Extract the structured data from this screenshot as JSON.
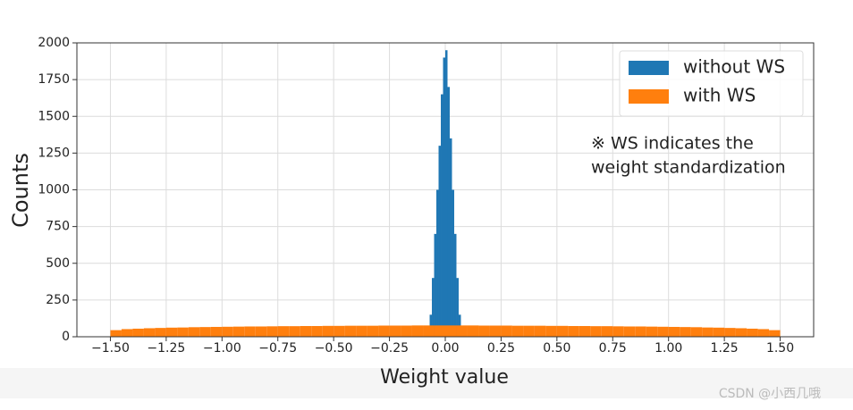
{
  "chart_data": {
    "type": "histogram",
    "xlabel": "Weight value",
    "ylabel": "Counts",
    "annotation": [
      "※ WS indicates the",
      "weight standardization"
    ],
    "watermark": "CSDN @小西几哦",
    "xlim": [
      -1.65,
      1.65
    ],
    "ylim": [
      0,
      2000
    ],
    "grid": true,
    "legend": "upper right",
    "xticks": [
      {
        "value": -1.5,
        "label": "−1.50"
      },
      {
        "value": -1.25,
        "label": "−1.25"
      },
      {
        "value": -1.0,
        "label": "−1.00"
      },
      {
        "value": -0.75,
        "label": "−0.75"
      },
      {
        "value": -0.5,
        "label": "−0.50"
      },
      {
        "value": -0.25,
        "label": "−0.25"
      },
      {
        "value": 0,
        "label": "0.00"
      },
      {
        "value": 0.25,
        "label": "0.25"
      },
      {
        "value": 0.5,
        "label": "0.50"
      },
      {
        "value": 0.75,
        "label": "0.75"
      },
      {
        "value": 1.0,
        "label": "1.00"
      },
      {
        "value": 1.25,
        "label": "1.25"
      },
      {
        "value": 1.5,
        "label": "1.50"
      }
    ],
    "yticks": [
      0,
      250,
      500,
      750,
      1000,
      1250,
      1500,
      1750,
      2000
    ],
    "series": [
      {
        "name": "without WS",
        "color": "#1f77b4",
        "bins": [
          -0.08,
          -0.07,
          -0.06,
          -0.05,
          -0.04,
          -0.03,
          -0.02,
          -0.01,
          0,
          0.01,
          0.02,
          0.03,
          0.04,
          0.05,
          0.06,
          0.07,
          0.08
        ],
        "values": [
          40,
          150,
          400,
          700,
          1000,
          1300,
          1650,
          1900,
          1950,
          1700,
          1350,
          1000,
          700,
          400,
          150,
          40
        ]
      },
      {
        "name": "with WS",
        "color": "#ff7f0e",
        "bins": [
          -1.5,
          -1.45,
          -1.4,
          -1.35,
          -1.3,
          -1.25,
          -1.2,
          -1.15,
          -1.1,
          -1.05,
          -1.0,
          -0.95,
          -0.9,
          -0.85,
          -0.8,
          -0.75,
          -0.7,
          -0.65,
          -0.6,
          -0.55,
          -0.5,
          -0.45,
          -0.4,
          -0.35,
          -0.3,
          -0.25,
          -0.2,
          -0.15,
          -0.1,
          -0.05,
          0,
          0.05,
          0.1,
          0.15,
          0.2,
          0.25,
          0.3,
          0.35,
          0.4,
          0.45,
          0.5,
          0.55,
          0.6,
          0.65,
          0.7,
          0.75,
          0.8,
          0.85,
          0.9,
          0.95,
          1.0,
          1.05,
          1.1,
          1.15,
          1.2,
          1.25,
          1.3,
          1.35,
          1.4,
          1.45,
          1.5
        ],
        "values": [
          45,
          52,
          55,
          58,
          60,
          62,
          63,
          65,
          66,
          67,
          68,
          69,
          70,
          70,
          71,
          72,
          72,
          73,
          73,
          74,
          74,
          75,
          75,
          75,
          76,
          76,
          76,
          77,
          77,
          77,
          77,
          77,
          77,
          76,
          76,
          76,
          75,
          75,
          75,
          74,
          74,
          73,
          73,
          72,
          72,
          71,
          70,
          70,
          69,
          68,
          67,
          66,
          65,
          63,
          62,
          60,
          58,
          55,
          52,
          45
        ]
      }
    ]
  }
}
